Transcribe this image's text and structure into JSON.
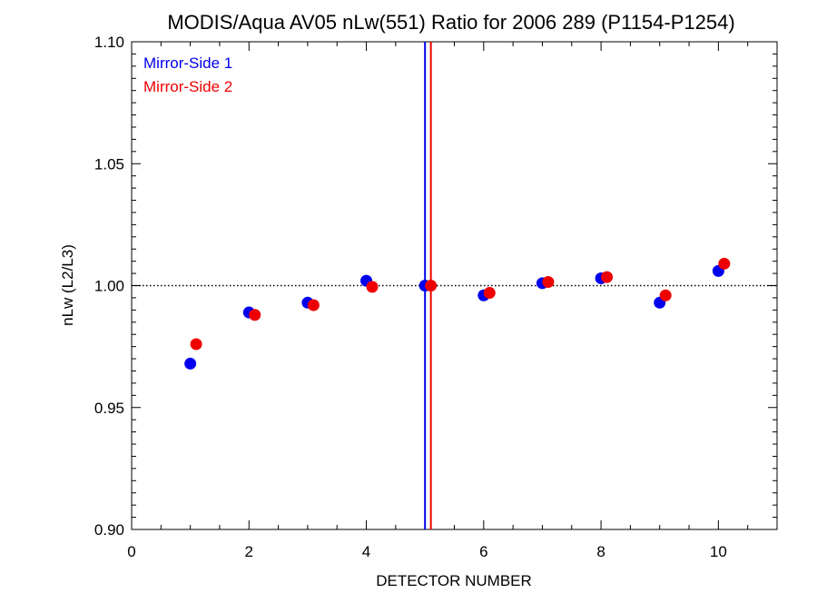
{
  "chart_data": {
    "type": "scatter",
    "title": "MODIS/Aqua AV05 nLw(551) Ratio for 2006 289 (P1154-P1254)",
    "xlabel": "DETECTOR NUMBER",
    "ylabel": "nLw (L2/L3)",
    "xlim": [
      0,
      11
    ],
    "ylim": [
      0.9,
      1.1
    ],
    "xticks": [
      0,
      2,
      4,
      6,
      8,
      10
    ],
    "xtick_labels": [
      "0",
      "2",
      "4",
      "6",
      "8",
      "10"
    ],
    "yticks": [
      0.9,
      0.95,
      1.0,
      1.05,
      1.1
    ],
    "ytick_labels": [
      "0.90",
      "0.95",
      "1.00",
      "1.05",
      "1.10"
    ],
    "reference_line_y": 1.0,
    "vertical_lines": [
      {
        "x": 5.0,
        "color": "#0000ee"
      },
      {
        "x": 5.1,
        "color": "#ee0000"
      }
    ],
    "legend_position": "top-left",
    "grid": false,
    "series": [
      {
        "name": "Mirror-Side 1",
        "color": "#0000ee",
        "x": [
          1,
          2,
          3,
          4,
          5,
          6,
          7,
          8,
          9,
          10
        ],
        "y": [
          0.968,
          0.989,
          0.993,
          1.002,
          1.0,
          0.996,
          1.001,
          1.003,
          0.993,
          1.006
        ]
      },
      {
        "name": "Mirror-Side 2",
        "color": "#ee0000",
        "x": [
          1.1,
          2.1,
          3.1,
          4.1,
          5.1,
          6.1,
          7.1,
          8.1,
          9.1,
          10.1
        ],
        "y": [
          0.976,
          0.988,
          0.992,
          0.9995,
          1.0,
          0.997,
          1.0015,
          1.0035,
          0.996,
          1.009
        ]
      }
    ]
  }
}
